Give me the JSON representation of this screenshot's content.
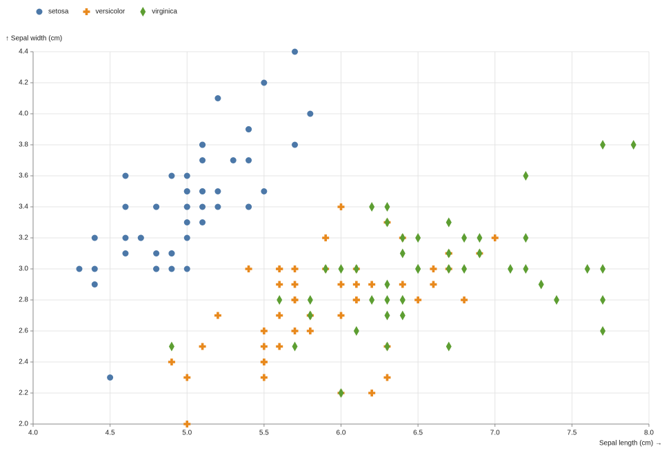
{
  "chart_data": {
    "type": "scatter",
    "x_label": "Sepal length (cm) →",
    "y_label": "↑ Sepal width (cm)",
    "xlim": [
      4,
      8
    ],
    "ylim": [
      2,
      4.4
    ],
    "xticks": [
      {
        "value": 4,
        "label": "4.0"
      },
      4.5,
      {
        "value": 5,
        "label": "5.0"
      },
      5.5,
      {
        "value": 6,
        "label": "6.0"
      },
      6.5,
      {
        "value": 7,
        "label": "7.0"
      },
      7.5,
      {
        "value": 8,
        "label": "8.0"
      }
    ],
    "yticks": [
      {
        "value": 2,
        "label": "2.0"
      },
      2.2,
      2.4,
      2.6,
      2.8,
      {
        "value": 3,
        "label": "3.0"
      },
      3.2,
      3.4,
      3.6,
      3.8,
      {
        "value": 4,
        "label": "4.0"
      },
      4.2,
      4.4
    ],
    "grid": true,
    "legend": "top-left",
    "series": [
      {
        "name": "setosa",
        "color": "#4c78a8",
        "marker": "circle",
        "x": [
          5.1,
          4.9,
          4.7,
          4.6,
          5.0,
          5.4,
          4.6,
          5.0,
          4.4,
          4.9,
          5.4,
          4.8,
          4.8,
          4.3,
          5.8,
          5.7,
          5.4,
          5.1,
          5.7,
          5.1,
          5.4,
          5.1,
          4.6,
          5.1,
          4.8,
          5.0,
          5.0,
          5.2,
          5.2,
          4.7,
          4.8,
          5.4,
          5.2,
          5.5,
          4.9,
          5.0,
          5.5,
          4.9,
          4.4,
          5.1,
          5.0,
          4.5,
          4.4,
          5.0,
          5.1,
          4.8,
          5.1,
          4.6,
          5.3,
          5.0
        ],
        "y": [
          3.5,
          3.0,
          3.2,
          3.1,
          3.6,
          3.9,
          3.4,
          3.4,
          2.9,
          3.1,
          3.7,
          3.4,
          3.0,
          3.0,
          4.0,
          4.4,
          3.9,
          3.5,
          3.8,
          3.8,
          3.4,
          3.7,
          3.6,
          3.3,
          3.4,
          3.0,
          3.4,
          3.5,
          3.4,
          3.2,
          3.1,
          3.4,
          4.1,
          4.2,
          3.1,
          3.2,
          3.5,
          3.6,
          3.0,
          3.4,
          3.5,
          2.3,
          3.2,
          3.5,
          3.8,
          3.0,
          3.8,
          3.2,
          3.7,
          3.3
        ]
      },
      {
        "name": "versicolor",
        "color": "#e8891d",
        "marker": "cross",
        "x": [
          7.0,
          6.4,
          6.9,
          5.5,
          6.5,
          5.7,
          6.3,
          4.9,
          6.6,
          5.2,
          5.0,
          5.9,
          6.0,
          6.1,
          5.6,
          6.7,
          5.6,
          5.8,
          6.2,
          5.6,
          5.9,
          6.1,
          6.3,
          6.1,
          6.4,
          6.6,
          6.8,
          6.7,
          6.0,
          5.7,
          5.5,
          5.5,
          5.8,
          6.0,
          5.4,
          6.0,
          6.7,
          6.3,
          5.6,
          5.5,
          5.5,
          6.1,
          5.8,
          5.0,
          5.6,
          5.7,
          5.7,
          6.2,
          5.1,
          5.7
        ],
        "y": [
          3.2,
          3.2,
          3.1,
          2.3,
          2.8,
          2.8,
          3.3,
          2.4,
          2.9,
          2.7,
          2.0,
          3.0,
          2.2,
          2.9,
          2.9,
          3.1,
          3.0,
          2.7,
          2.2,
          2.5,
          3.2,
          2.8,
          2.5,
          2.8,
          2.9,
          3.0,
          2.8,
          3.0,
          2.9,
          2.6,
          2.4,
          2.4,
          2.7,
          2.7,
          3.0,
          3.4,
          3.1,
          2.3,
          3.0,
          2.5,
          2.6,
          3.0,
          2.6,
          2.3,
          2.7,
          3.0,
          2.9,
          2.9,
          2.5,
          2.8
        ]
      },
      {
        "name": "virginica",
        "color": "#5d9e32",
        "marker": "diamond",
        "x": [
          6.3,
          5.8,
          7.1,
          6.3,
          6.5,
          7.6,
          4.9,
          7.3,
          6.7,
          7.2,
          6.5,
          6.4,
          6.8,
          5.7,
          5.8,
          6.4,
          6.5,
          7.7,
          7.7,
          6.0,
          6.9,
          5.6,
          7.7,
          6.3,
          6.7,
          7.2,
          6.2,
          6.1,
          6.4,
          7.2,
          7.4,
          7.9,
          6.4,
          6.3,
          6.1,
          7.7,
          6.3,
          6.4,
          6.0,
          6.9,
          6.7,
          6.9,
          5.8,
          6.8,
          6.7,
          6.7,
          6.3,
          6.5,
          6.2,
          5.9
        ],
        "y": [
          3.3,
          2.7,
          3.0,
          2.9,
          3.0,
          3.0,
          2.5,
          2.9,
          2.5,
          3.6,
          3.2,
          2.7,
          3.0,
          2.5,
          2.8,
          3.2,
          3.0,
          3.8,
          2.6,
          2.2,
          3.2,
          2.8,
          2.8,
          2.7,
          3.3,
          3.2,
          2.8,
          3.0,
          2.8,
          3.0,
          2.8,
          3.8,
          2.8,
          2.8,
          2.6,
          3.0,
          3.4,
          3.1,
          3.0,
          3.1,
          3.1,
          3.1,
          2.7,
          3.2,
          3.3,
          3.0,
          2.5,
          3.0,
          3.4,
          3.0
        ]
      }
    ]
  }
}
